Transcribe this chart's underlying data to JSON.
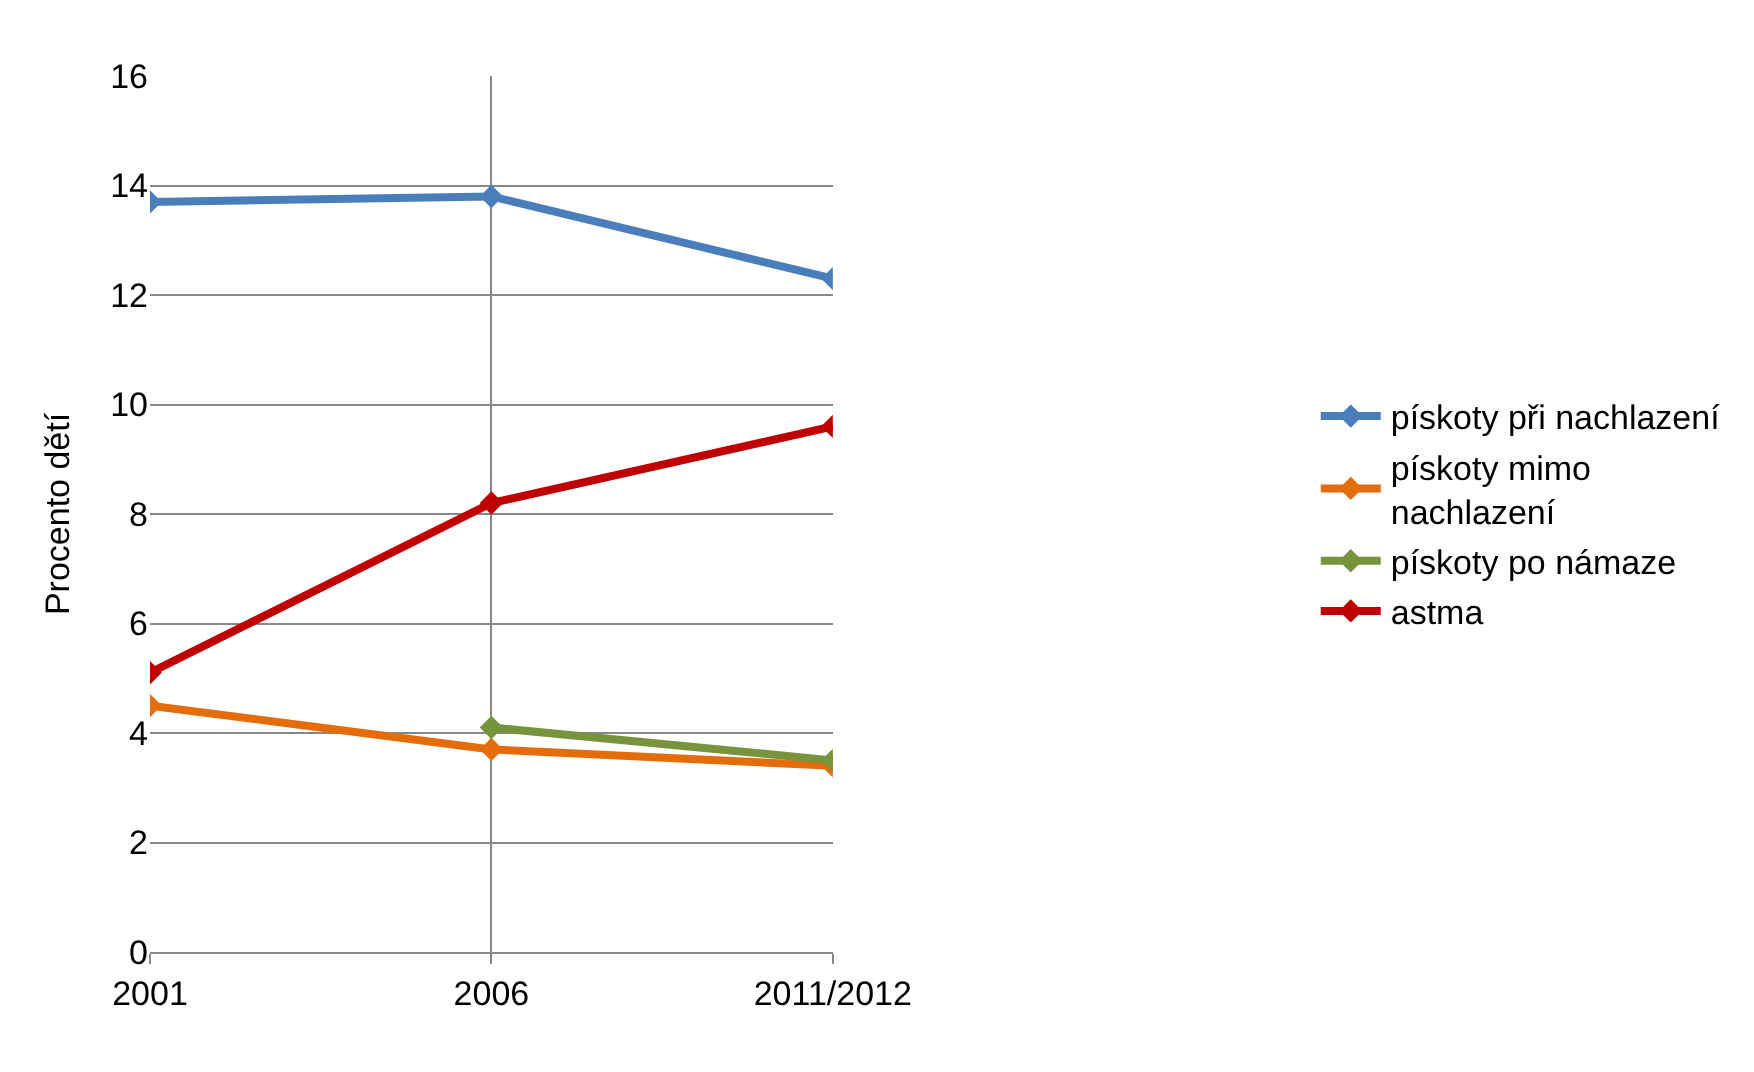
{
  "chart_data": {
    "type": "line",
    "ylabel": "Procento dětí",
    "categories": [
      "2001",
      "2006",
      "2011/2012"
    ],
    "series": [
      {
        "name": "pískoty při nachlazení",
        "color": "#4a7ebb",
        "values": [
          13.7,
          13.8,
          12.3
        ]
      },
      {
        "name": "pískoty mimo nachlazení",
        "color": "#e46c0a",
        "values": [
          4.5,
          3.7,
          3.4
        ]
      },
      {
        "name": "pískoty po námaze",
        "color": "#77933c",
        "values": [
          null,
          4.1,
          3.5
        ]
      },
      {
        "name": "astma",
        "color": "#c00000",
        "values": [
          5.1,
          8.2,
          9.6
        ]
      }
    ],
    "ylim": [
      0,
      16
    ],
    "yticks": [
      0,
      2,
      4,
      6,
      8,
      10,
      12,
      14,
      16
    ],
    "grid": true,
    "legend": "right",
    "marker": "diamond",
    "line_style": "solid"
  }
}
